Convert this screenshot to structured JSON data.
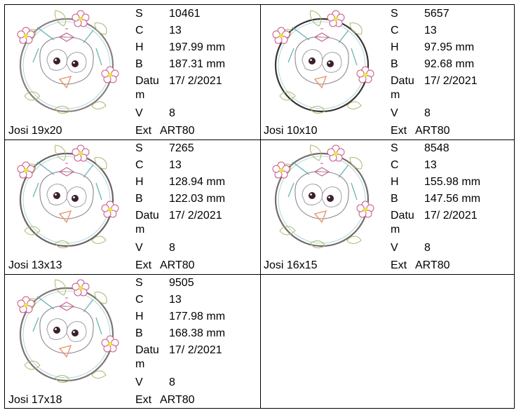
{
  "designs": [
    {
      "name": "Josi 19x20",
      "S": "10461",
      "C": "13",
      "H": "197.99 mm",
      "B": "187.31 mm",
      "Datum": "17/ 2/2021",
      "V": "8",
      "Ext": "ART80",
      "ring_color": "#8a7f82"
    },
    {
      "name": "Josi 10x10",
      "S": "5657",
      "C": "13",
      "H": "97.95 mm",
      "B": "92.68 mm",
      "Datum": "17/ 2/2021",
      "V": "8",
      "Ext": "ART80",
      "ring_color": "#3a3436"
    },
    {
      "name": "Josi 13x13",
      "S": "7265",
      "C": "13",
      "H": "128.94 mm",
      "B": "122.03 mm",
      "Datum": "17/ 2/2021",
      "V": "8",
      "Ext": "ART80",
      "ring_color": "#6c6266"
    },
    {
      "name": "Josi 16x15",
      "S": "8548",
      "C": "13",
      "H": "155.98 mm",
      "B": "147.56 mm",
      "Datum": "17/ 2/2021",
      "V": "8",
      "Ext": "ART80",
      "ring_color": "#756b6f"
    },
    {
      "name": "Josi 17x18",
      "S": "9505",
      "C": "13",
      "H": "177.98 mm",
      "B": "168.38 mm",
      "Datum": "17/ 2/2021",
      "V": "8",
      "Ext": "ART80",
      "ring_color": "#7e7478"
    }
  ],
  "labels": {
    "S": "S",
    "C": "C",
    "H": "H",
    "B": "B",
    "Datum": "Datum",
    "V": "V",
    "Ext": "Ext"
  },
  "colors": {
    "flower": "#c8578a",
    "flower_center": "#f2e33a",
    "leaf": "#a8b86a",
    "teal": "#5fb0ac",
    "beak": "#e8956a",
    "eye": "#3b1f2b"
  }
}
